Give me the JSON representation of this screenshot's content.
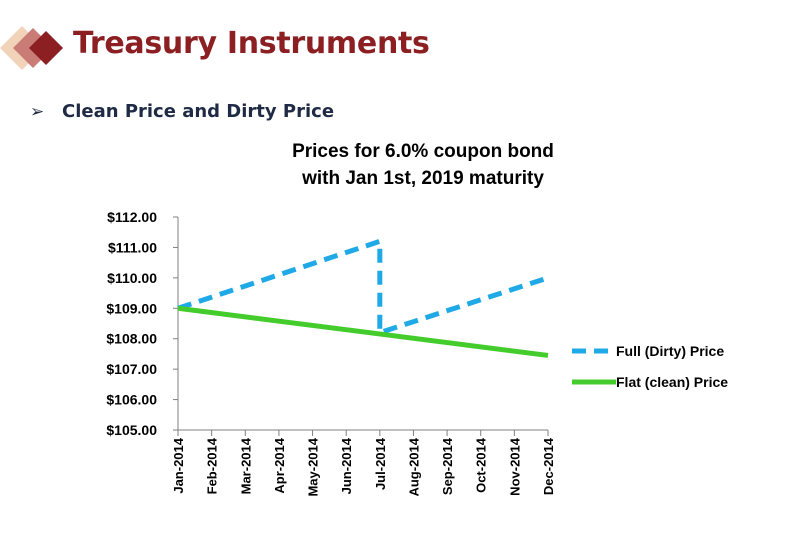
{
  "slide": {
    "title": "Treasury Instruments",
    "bullet": "Clean Price and Dirty Price",
    "bullet_marker": "➢",
    "colors": {
      "title": "#8b1f22",
      "bullet": "#1f2a44",
      "logo_dark": "#8b1f22",
      "logo_mid": "#c97b76",
      "logo_light": "#f0d3b8"
    }
  },
  "chart_data": {
    "type": "line",
    "title_lines": [
      "Prices for 6.0% coupon  bond",
      "with Jan 1st, 2019 maturity"
    ],
    "categories": [
      "Jan-2014",
      "Feb-2014",
      "Mar-2014",
      "Apr-2014",
      "May-2014",
      "Jun-2014",
      "Jul-2014",
      "Aug-2014",
      "Sep-2014",
      "Oct-2014",
      "Nov-2014",
      "Dec-2014"
    ],
    "y_ticks": [
      "$105.00",
      "$106.00",
      "$107.00",
      "$108.00",
      "$109.00",
      "$110.00",
      "$111.00",
      "$112.00"
    ],
    "ylim": [
      105,
      112
    ],
    "grid": false,
    "legend_position": "right",
    "series": [
      {
        "name": "Full (Dirty) Price",
        "style": "dashed",
        "color": "#1fa9e6",
        "points": [
          {
            "x": 0,
            "y": 109.0
          },
          {
            "x": 6,
            "y": 111.2
          },
          {
            "x": 6,
            "y": 108.2
          },
          {
            "x": 11,
            "y": 110.0
          }
        ]
      },
      {
        "name": "Flat (clean) Price",
        "style": "solid",
        "color": "#44cc2c",
        "points": [
          {
            "x": 0,
            "y": 109.0
          },
          {
            "x": 11,
            "y": 107.45
          }
        ]
      }
    ]
  }
}
